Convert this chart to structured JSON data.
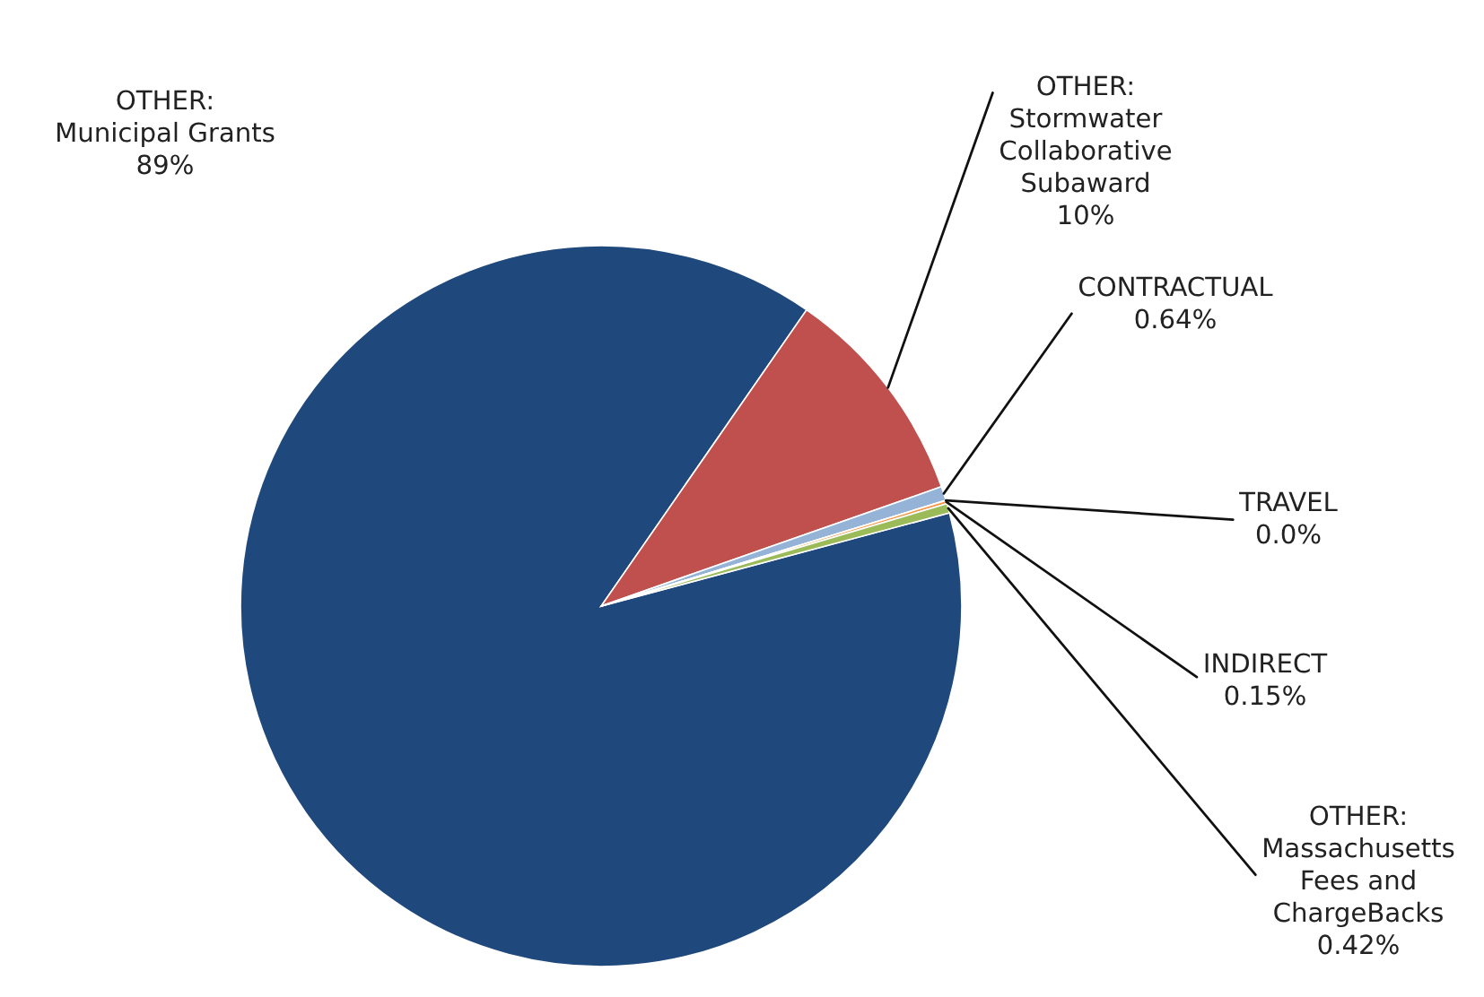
{
  "chart_data": {
    "type": "pie",
    "categories": [
      "OTHER:\nMunicipal Grants",
      "OTHER:\nStormwater\nCollaborative\nSubaward",
      "CONTRACTUAL",
      "TRAVEL",
      "INDIRECT",
      "OTHER:\nMassachusetts\nFees and\nChargeBacks"
    ],
    "values": [
      89,
      10,
      0.64,
      0.0,
      0.15,
      0.42
    ],
    "value_labels": [
      "89%",
      "10%",
      "0.64%",
      "0.0%",
      "0.15%",
      "0.42%"
    ],
    "colors": [
      "#1f497d",
      "#c0504d",
      "#95b3d7",
      "#4bacc6",
      "#f79646",
      "#9bbb59"
    ],
    "legend": false
  }
}
